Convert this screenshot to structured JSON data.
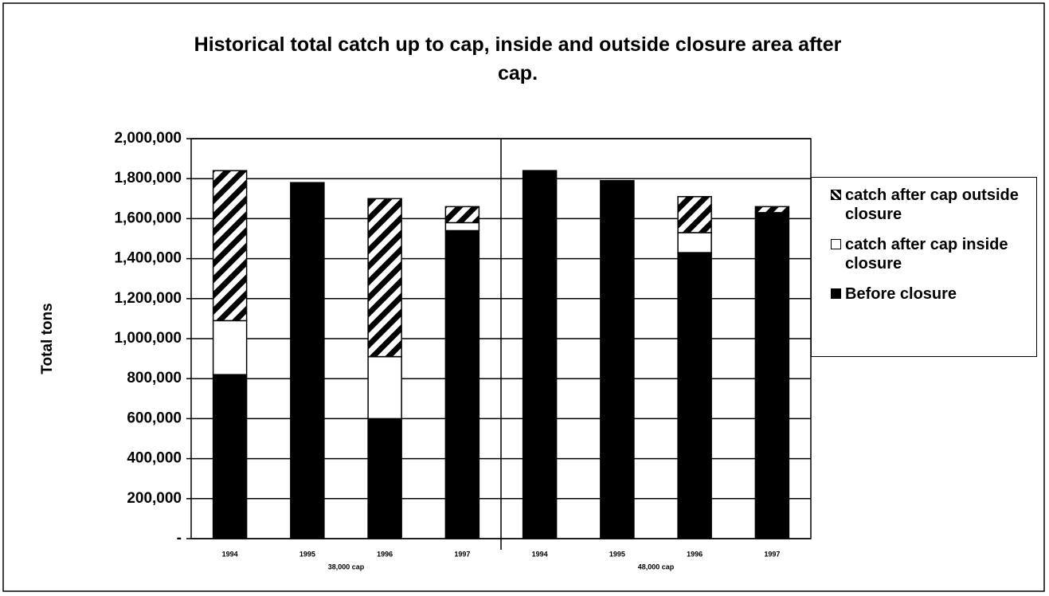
{
  "chart_data": {
    "type": "stacked-bar",
    "title": "Historical total catch up to cap, inside and outside closure area after cap.",
    "y_label": "Total tons",
    "categories": [
      "1994",
      "1995",
      "1996",
      "1997",
      "1994",
      "1995",
      "1996",
      "1997"
    ],
    "groups": [
      "38,000 cap",
      "48,000 cap"
    ],
    "series": [
      {
        "name": "Before closure",
        "color": "#000000",
        "values": [
          820000,
          1780000,
          600000,
          1540000,
          1840000,
          1790000,
          1430000,
          1630000
        ]
      },
      {
        "name": "catch after cap inside closure",
        "color": "#ffffff",
        "values": [
          270000,
          0,
          310000,
          40000,
          0,
          0,
          100000,
          0
        ]
      },
      {
        "name": "catch after cap outside closure",
        "color": "hatch",
        "values": [
          750000,
          0,
          790000,
          80000,
          0,
          0,
          180000,
          30000
        ]
      }
    ],
    "ylim": [
      0,
      2000000
    ],
    "yticks": [
      {
        "value": 0,
        "label": "-"
      },
      {
        "value": 200000,
        "label": "200,000"
      },
      {
        "value": 400000,
        "label": "400,000"
      },
      {
        "value": 600000,
        "label": "600,000"
      },
      {
        "value": 800000,
        "label": "800,000"
      },
      {
        "value": 1000000,
        "label": "1,000,000"
      },
      {
        "value": 1200000,
        "label": "1,200,000"
      },
      {
        "value": 1400000,
        "label": "1,400,000"
      },
      {
        "value": 1600000,
        "label": "1,600,000"
      },
      {
        "value": 1800000,
        "label": "1,800,000"
      },
      {
        "value": 2000000,
        "label": "2,000,000"
      }
    ],
    "grid": true,
    "legend": "right"
  }
}
